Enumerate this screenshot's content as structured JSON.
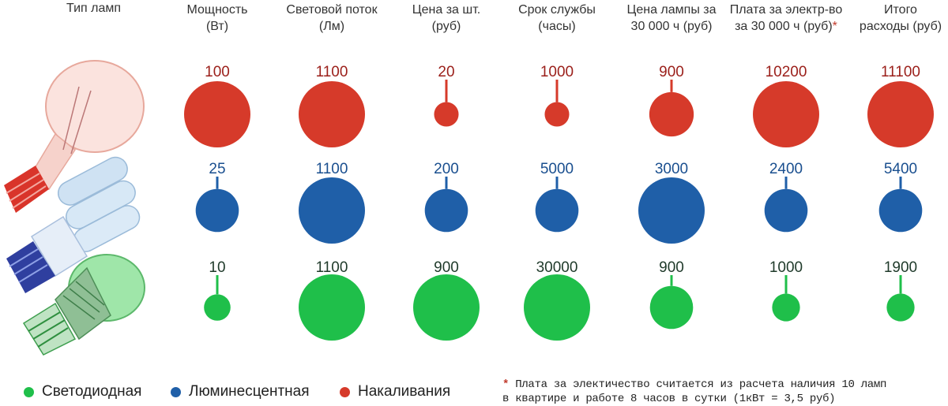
{
  "header": {
    "lamp_type": "Тип ламп",
    "columns": [
      {
        "line1": "Мощность",
        "line2": "(Вт)",
        "star": false
      },
      {
        "line1": "Световой поток",
        "line2": "(Лм)",
        "star": false
      },
      {
        "line1": "Цена за шт.",
        "line2": "(руб)",
        "star": false
      },
      {
        "line1": "Срок службы",
        "line2": "(часы)",
        "star": false
      },
      {
        "line1": "Цена лампы за",
        "line2": "30 000 ч (руб)",
        "star": false
      },
      {
        "line1": "Плата за электр-во",
        "line2": "за 30 000 ч (руб)",
        "star": true
      },
      {
        "line1": "Итого",
        "line2": "расходы (руб)",
        "star": false
      }
    ]
  },
  "chart_data": {
    "type": "bubble-table",
    "categories": [
      "Мощность (Вт)",
      "Световой поток (Лм)",
      "Цена за шт. (руб)",
      "Срок службы (часы)",
      "Цена лампы за 30 000 ч (руб)",
      "Плата за электр-во за 30 000 ч (руб)",
      "Итого расходы (руб)"
    ],
    "series": [
      {
        "name": "Накаливания",
        "color": "#d63a2a",
        "text_color": "#9b1f1a",
        "values": [
          "100",
          "1100",
          "20",
          "1000",
          "900",
          "10200",
          "11100"
        ],
        "size_factors": [
          1.0,
          1.0,
          0.37,
          0.37,
          0.67,
          1.0,
          1.0
        ]
      },
      {
        "name": "Люминесцентная",
        "color": "#1f5fa8",
        "text_color": "#1a4f8f",
        "values": [
          "25",
          "1100",
          "200",
          "5000",
          "3000",
          "2400",
          "5400"
        ],
        "size_factors": [
          0.65,
          1.0,
          0.65,
          0.65,
          1.0,
          0.65,
          0.65
        ]
      },
      {
        "name": "Светодиодная",
        "color": "#1fbf4a",
        "text_color": "#1f3a2a",
        "values": [
          "10",
          "1100",
          "900",
          "30000",
          "900",
          "1000",
          "1900"
        ],
        "size_factors": [
          0.4,
          1.0,
          1.0,
          1.0,
          0.65,
          0.42,
          0.42
        ]
      }
    ]
  },
  "legend": [
    {
      "label": "Светодиодная",
      "color": "#1fbf4a"
    },
    {
      "label": "Люминесцентная",
      "color": "#1f5fa8"
    },
    {
      "label": "Накаливания",
      "color": "#d63a2a"
    }
  ],
  "note": {
    "star": "*",
    "line1": "Плата за электичество считается из расчета наличия 10 ламп",
    "line2": "в квартире и работе 8 часов в сутки (1кВт = 3,5 руб)"
  }
}
